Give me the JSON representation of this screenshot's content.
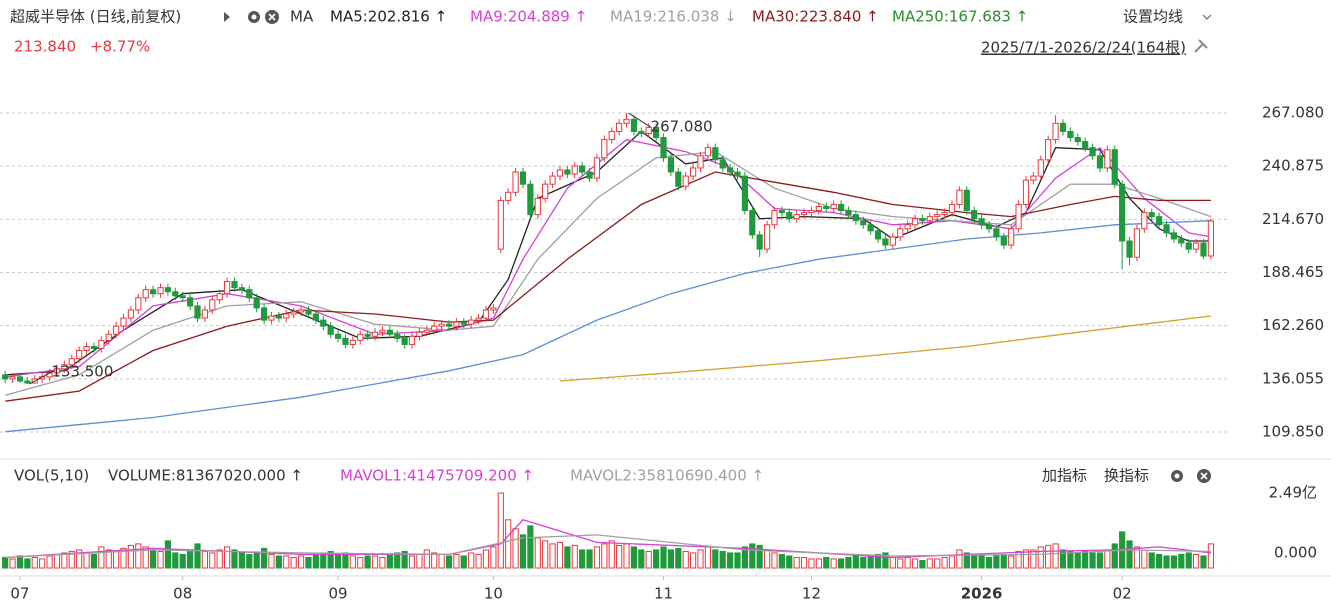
{
  "chart_data": [
    {
      "type": "candlestick",
      "title": "超威半导体 (日线,前复权)",
      "ma_label": "MA",
      "settings_label": "设置均线",
      "last": {
        "value": 213.84,
        "label": "213.840"
      },
      "change": {
        "value": 8.77,
        "label": "+8.77%"
      },
      "range_label": "2025/7/1-2026/2/24(164根)",
      "up_color": "#e8383d",
      "down_color": "#1f9a3c",
      "xlim": [
        -0.7,
        164.5
      ],
      "ylim": [
        98.5,
        273.5
      ],
      "yticks": [
        {
          "value": 267.08,
          "label": "267.080"
        },
        {
          "value": 240.875,
          "label": "240.875"
        },
        {
          "value": 214.67,
          "label": "214.670"
        },
        {
          "value": 188.465,
          "label": "188.465"
        },
        {
          "value": 162.26,
          "label": "162.260"
        },
        {
          "value": 136.055,
          "label": "136.055"
        },
        {
          "value": 109.85,
          "label": "109.850"
        }
      ],
      "grid": true,
      "open": [
        138,
        136,
        137,
        135,
        134,
        136,
        137,
        139,
        141,
        143,
        146,
        150,
        152,
        151,
        155,
        158,
        162,
        166,
        170,
        176,
        180,
        178,
        181,
        179,
        177,
        176,
        172,
        166,
        170,
        175,
        178,
        184,
        181,
        180,
        176,
        171,
        165,
        167,
        166,
        168,
        169,
        170,
        168,
        165,
        162,
        158,
        156,
        153,
        155,
        158,
        157,
        159,
        160,
        158,
        156,
        153,
        157,
        159,
        160,
        162,
        163,
        162,
        164,
        163,
        165,
        166,
        170,
        200,
        224,
        228,
        238,
        232,
        217,
        225,
        232,
        236,
        239,
        237,
        241,
        238,
        235,
        245,
        254,
        258,
        262,
        264,
        258,
        257,
        260,
        255,
        245,
        238,
        231,
        236,
        240,
        246,
        250,
        244,
        240,
        238,
        236,
        219,
        207,
        200,
        212,
        219,
        218,
        215,
        217,
        218,
        219,
        221,
        220,
        222,
        219,
        217,
        214,
        212,
        209,
        205,
        202,
        206,
        210,
        212,
        215,
        214,
        216,
        217,
        218,
        222,
        229,
        219,
        215,
        212,
        210,
        206,
        202,
        210,
        222,
        234,
        236,
        244,
        254,
        262,
        258,
        255,
        253,
        250,
        246,
        240,
        249,
        232,
        204,
        196,
        210,
        218,
        216,
        212,
        208,
        205,
        203,
        200,
        203,
        196.6
      ],
      "high": [
        140,
        139,
        139,
        137,
        138,
        139,
        141,
        143,
        145,
        148,
        152,
        154,
        154,
        157,
        160,
        164,
        168,
        172,
        178,
        182,
        182,
        183,
        183,
        181,
        179,
        178,
        174,
        172,
        177,
        180,
        186,
        186,
        183,
        182,
        178,
        173,
        169,
        169,
        170,
        171,
        172,
        172,
        170,
        167,
        164,
        160,
        158,
        157,
        160,
        160,
        161,
        162,
        162,
        160,
        158,
        159,
        161,
        162,
        164,
        165,
        165,
        166,
        166,
        167,
        168,
        172,
        173,
        226,
        230,
        240,
        240,
        234,
        227,
        234,
        238,
        241,
        241,
        243,
        243,
        240,
        247,
        256,
        260,
        264,
        267.08,
        266,
        260,
        262,
        262,
        257,
        247,
        240,
        238,
        242,
        248,
        252,
        252,
        246,
        242,
        240,
        238,
        221,
        209,
        214,
        221,
        221,
        220,
        219,
        220,
        221,
        223,
        223,
        224,
        224,
        221,
        219,
        216,
        214,
        211,
        207,
        208,
        212,
        214,
        217,
        217,
        218,
        219,
        220,
        224,
        231,
        231,
        221,
        217,
        214,
        212,
        208,
        212,
        224,
        236,
        238,
        246,
        256,
        266,
        264,
        260,
        257,
        255,
        252,
        248,
        251,
        251,
        234,
        206,
        212,
        220,
        220,
        218,
        214,
        210,
        207,
        205,
        205,
        205,
        215
      ],
      "low": [
        134,
        134,
        134,
        133.5,
        134,
        134,
        135,
        137,
        139,
        141,
        144,
        148,
        149,
        149,
        153,
        156,
        160,
        164,
        168,
        174,
        176,
        176,
        177,
        175,
        174,
        170,
        164,
        164,
        168,
        173,
        176,
        179,
        178,
        174,
        169,
        163,
        163,
        164,
        164,
        166,
        167,
        166,
        163,
        160,
        156,
        154,
        151,
        151,
        153,
        155,
        155,
        157,
        156,
        154,
        151,
        151,
        155,
        157,
        158,
        160,
        160,
        160,
        161,
        161,
        163,
        164,
        168,
        198,
        222,
        226,
        230,
        215,
        215,
        223,
        230,
        234,
        235,
        235,
        236,
        233,
        233,
        243,
        252,
        256,
        260,
        256,
        255,
        255,
        253,
        243,
        236,
        229,
        229,
        234,
        238,
        244,
        242,
        238,
        236,
        234,
        217,
        205,
        196,
        198,
        210,
        216,
        213,
        213,
        215,
        216,
        217,
        218,
        218,
        217,
        215,
        212,
        210,
        207,
        203,
        200,
        200,
        204,
        208,
        210,
        212,
        212,
        214,
        215,
        216,
        220,
        217,
        213,
        210,
        208,
        204,
        200,
        200,
        208,
        220,
        232,
        234,
        242,
        252,
        256,
        253,
        251,
        248,
        244,
        238,
        238,
        230,
        190,
        192,
        194,
        208,
        214,
        210,
        206,
        203,
        201,
        198,
        198,
        195,
        195
      ],
      "close": [
        136,
        137,
        135,
        134,
        136,
        137,
        139,
        141,
        143,
        146,
        150,
        152,
        151,
        155,
        158,
        162,
        166,
        170,
        176,
        180,
        178,
        181,
        179,
        177,
        176,
        172,
        166,
        170,
        175,
        178,
        184,
        181,
        180,
        176,
        171,
        165,
        167,
        166,
        168,
        169,
        170,
        168,
        165,
        162,
        158,
        156,
        153,
        155,
        158,
        157,
        159,
        160,
        158,
        156,
        153,
        157,
        159,
        160,
        162,
        163,
        162,
        164,
        163,
        165,
        166,
        170,
        171,
        224,
        228,
        238,
        232,
        217,
        225,
        232,
        236,
        239,
        237,
        241,
        238,
        235,
        245,
        254,
        258,
        262,
        264,
        258,
        257,
        260,
        255,
        245,
        238,
        231,
        236,
        240,
        246,
        250,
        244,
        240,
        238,
        236,
        219,
        207,
        200,
        212,
        219,
        218,
        215,
        217,
        218,
        219,
        221,
        220,
        222,
        219,
        217,
        214,
        212,
        209,
        205,
        202,
        206,
        210,
        212,
        215,
        214,
        216,
        217,
        218,
        222,
        229,
        219,
        215,
        212,
        210,
        206,
        202,
        210,
        222,
        234,
        236,
        244,
        254,
        262,
        258,
        255,
        253,
        250,
        246,
        240,
        249,
        232,
        204,
        196,
        210,
        218,
        216,
        212,
        208,
        205,
        203,
        200,
        203,
        196.6,
        213.84
      ],
      "annotations": [
        {
          "index": 84,
          "value": 267.08,
          "label": "267.080"
        },
        {
          "index": 3,
          "value": 133.5,
          "label": "133.500"
        }
      ],
      "series": [
        {
          "name": "MA5:202.816 ↑",
          "color": "#222222",
          "x": [
            0,
            8,
            16,
            24,
            32,
            40,
            48,
            56,
            64,
            68,
            72,
            80,
            86,
            92,
            97,
            102,
            108,
            116,
            120,
            128,
            134,
            138,
            142,
            148,
            152,
            156,
            160,
            163
          ],
          "values": [
            138,
            140,
            160,
            178,
            180,
            168,
            156,
            157,
            164,
            185,
            225,
            238,
            258,
            242,
            245,
            215,
            216,
            215,
            205,
            217,
            211,
            218,
            250,
            249,
            225,
            210,
            204,
            204
          ]
        },
        {
          "name": "MA9:204.889 ↑",
          "color": "#d63fd6",
          "x": [
            0,
            10,
            20,
            30,
            40,
            50,
            60,
            66,
            70,
            76,
            84,
            92,
            98,
            104,
            112,
            120,
            128,
            136,
            142,
            148,
            154,
            160,
            163
          ],
          "values": [
            137,
            142,
            172,
            178,
            172,
            158,
            160,
            166,
            195,
            230,
            254,
            248,
            240,
            220,
            218,
            212,
            214,
            210,
            235,
            250,
            225,
            208,
            206
          ]
        },
        {
          "name": "MA19:216.038 ↓",
          "color": "#a0a0a0",
          "x": [
            0,
            10,
            20,
            30,
            40,
            50,
            60,
            66,
            72,
            80,
            88,
            96,
            104,
            112,
            120,
            128,
            136,
            144,
            150,
            156,
            163
          ],
          "values": [
            128,
            138,
            160,
            172,
            174,
            163,
            160,
            162,
            195,
            225,
            245,
            248,
            230,
            220,
            216,
            214,
            212,
            232,
            232,
            225,
            216
          ]
        },
        {
          "name": "MA30:223.840 ↑",
          "color": "#8b1a1a",
          "x": [
            0,
            10,
            20,
            30,
            40,
            50,
            60,
            66,
            76,
            86,
            96,
            104,
            112,
            120,
            130,
            136,
            144,
            150,
            156,
            163
          ],
          "values": [
            125,
            130,
            150,
            162,
            170,
            168,
            164,
            165,
            195,
            222,
            238,
            233,
            228,
            222,
            218,
            216,
            222,
            226,
            224,
            224
          ]
        },
        {
          "name": "MA250:167.683 ↑",
          "color": "#d4a030",
          "text_color": "#2e8b2e",
          "x": [
            75,
            90,
            110,
            130,
            145,
            163
          ],
          "values": [
            135,
            139,
            145,
            152,
            159,
            167
          ]
        },
        {
          "color": "#5b8fd6",
          "x": [
            0,
            20,
            40,
            60,
            70,
            80,
            90,
            100,
            110,
            120,
            130,
            140,
            150,
            163
          ],
          "values": [
            110,
            117,
            127,
            140,
            148,
            165,
            178,
            188,
            195,
            200,
            205,
            208,
            212,
            214
          ]
        }
      ]
    },
    {
      "type": "volume",
      "title": "VOL(5,10)",
      "volume_label": "VOLUME:81367020.000 ↑",
      "buttons": [
        "加指标",
        "换指标"
      ],
      "xlim": [
        -0.7,
        164.5
      ],
      "ylim": [
        0,
        2.49
      ],
      "yticks": [
        {
          "value": 2.49,
          "label": "2.49亿"
        },
        {
          "value": 0,
          "label": "0.000"
        }
      ],
      "xticks": [
        {
          "value": 2,
          "label": "07"
        },
        {
          "value": 24,
          "label": "08"
        },
        {
          "value": 45,
          "label": "09"
        },
        {
          "value": 66,
          "label": "10"
        },
        {
          "value": 89,
          "label": "11"
        },
        {
          "value": 109,
          "label": "12"
        },
        {
          "value": 132,
          "label": "2026"
        },
        {
          "value": 151,
          "label": "02"
        }
      ],
      "values": [
        0.35,
        0.3,
        0.4,
        0.3,
        0.35,
        0.3,
        0.4,
        0.45,
        0.5,
        0.55,
        0.6,
        0.5,
        0.45,
        0.7,
        0.6,
        0.55,
        0.65,
        0.75,
        0.8,
        0.7,
        0.6,
        0.55,
        0.9,
        0.5,
        0.45,
        0.6,
        0.8,
        0.55,
        0.5,
        0.6,
        0.7,
        0.6,
        0.5,
        0.45,
        0.5,
        0.65,
        0.45,
        0.4,
        0.4,
        0.35,
        0.4,
        0.35,
        0.45,
        0.5,
        0.55,
        0.45,
        0.5,
        0.4,
        0.35,
        0.4,
        0.4,
        0.35,
        0.45,
        0.5,
        0.55,
        0.4,
        0.45,
        0.6,
        0.5,
        0.45,
        0.4,
        0.45,
        0.4,
        0.5,
        0.45,
        0.6,
        0.7,
        2.49,
        1.6,
        1.3,
        1.1,
        1.4,
        1.0,
        0.9,
        0.8,
        0.85,
        0.7,
        0.75,
        0.6,
        0.6,
        0.7,
        0.8,
        0.9,
        0.75,
        0.8,
        0.7,
        0.6,
        0.55,
        0.6,
        0.7,
        0.6,
        0.65,
        0.55,
        0.5,
        0.6,
        0.7,
        0.6,
        0.55,
        0.5,
        0.5,
        0.7,
        0.8,
        0.75,
        0.6,
        0.5,
        0.45,
        0.4,
        0.35,
        0.35,
        0.3,
        0.3,
        0.35,
        0.3,
        0.3,
        0.35,
        0.4,
        0.35,
        0.4,
        0.45,
        0.5,
        0.35,
        0.3,
        0.35,
        0.3,
        0.25,
        0.3,
        0.3,
        0.35,
        0.4,
        0.6,
        0.5,
        0.45,
        0.4,
        0.35,
        0.4,
        0.45,
        0.4,
        0.55,
        0.6,
        0.6,
        0.7,
        0.75,
        0.8,
        0.6,
        0.55,
        0.5,
        0.55,
        0.5,
        0.5,
        0.6,
        0.8,
        1.2,
        0.9,
        0.7,
        0.6,
        0.5,
        0.45,
        0.4,
        0.4,
        0.45,
        0.5,
        0.45,
        0.4,
        0.8
      ],
      "series": [
        {
          "name": "MAVOL1:41475709.200 ↑",
          "color": "#d63fd6",
          "x": [
            0,
            20,
            40,
            60,
            67,
            70,
            80,
            100,
            120,
            140,
            150,
            156,
            163
          ],
          "values": [
            0.35,
            0.65,
            0.45,
            0.45,
            0.8,
            1.6,
            0.85,
            0.65,
            0.35,
            0.55,
            0.6,
            0.7,
            0.5
          ]
        },
        {
          "name": "MAVOL2:35810690.400 ↑",
          "color": "#a0a0a0",
          "x": [
            0,
            20,
            40,
            60,
            70,
            80,
            100,
            120,
            140,
            152,
            163
          ],
          "values": [
            0.35,
            0.6,
            0.5,
            0.45,
            1.0,
            1.1,
            0.6,
            0.4,
            0.45,
            0.6,
            0.55
          ]
        }
      ]
    }
  ]
}
